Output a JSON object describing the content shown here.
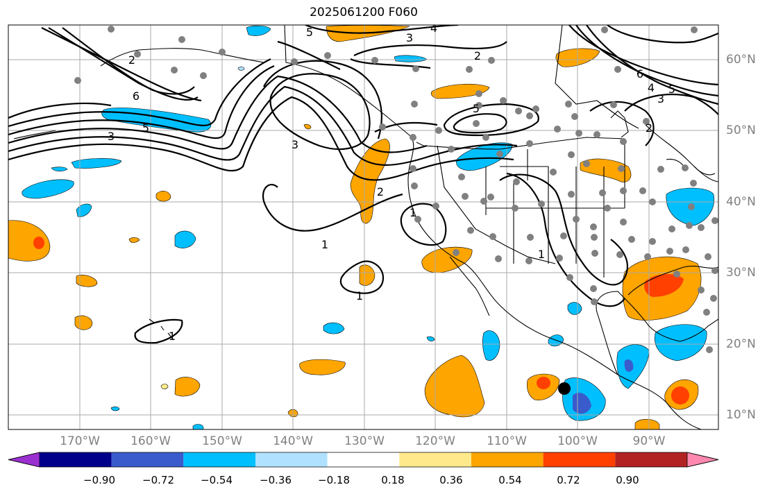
{
  "title": "2025061200 F060",
  "latitude_labels": [
    "60°N",
    "50°N",
    "40°N",
    "30°N",
    "20°N",
    "10°N"
  ],
  "longitude_labels": [
    "170°W",
    "160°W",
    "150°W",
    "140°W",
    "130°W",
    "120°W",
    "110°W",
    "100°W",
    "90°W"
  ],
  "contour_labels": [
    "1",
    "1",
    "1",
    "1",
    "1",
    "2",
    "2",
    "2",
    "2",
    "3",
    "3",
    "3",
    "3",
    "4",
    "4",
    "5",
    "5",
    "5",
    "5",
    "6",
    "6"
  ],
  "colorbar": {
    "tick_labels": [
      "−0.90",
      "−0.72",
      "−0.54",
      "−0.36",
      "−0.18",
      "0.18",
      "0.36",
      "0.54",
      "0.72",
      "0.90"
    ],
    "colors": [
      "#9b30d0",
      "#00008b",
      "#3a5bcc",
      "#00bfff",
      "#b0e2ff",
      "#ffffff",
      "#ffe98a",
      "#ffa500",
      "#ff4000",
      "#b22222",
      "#ff88b0"
    ],
    "extend": "both"
  },
  "colors": {
    "coast": "#000000",
    "grid": "#a9a9a9",
    "stations": "#808080",
    "marker": "#000000"
  }
}
